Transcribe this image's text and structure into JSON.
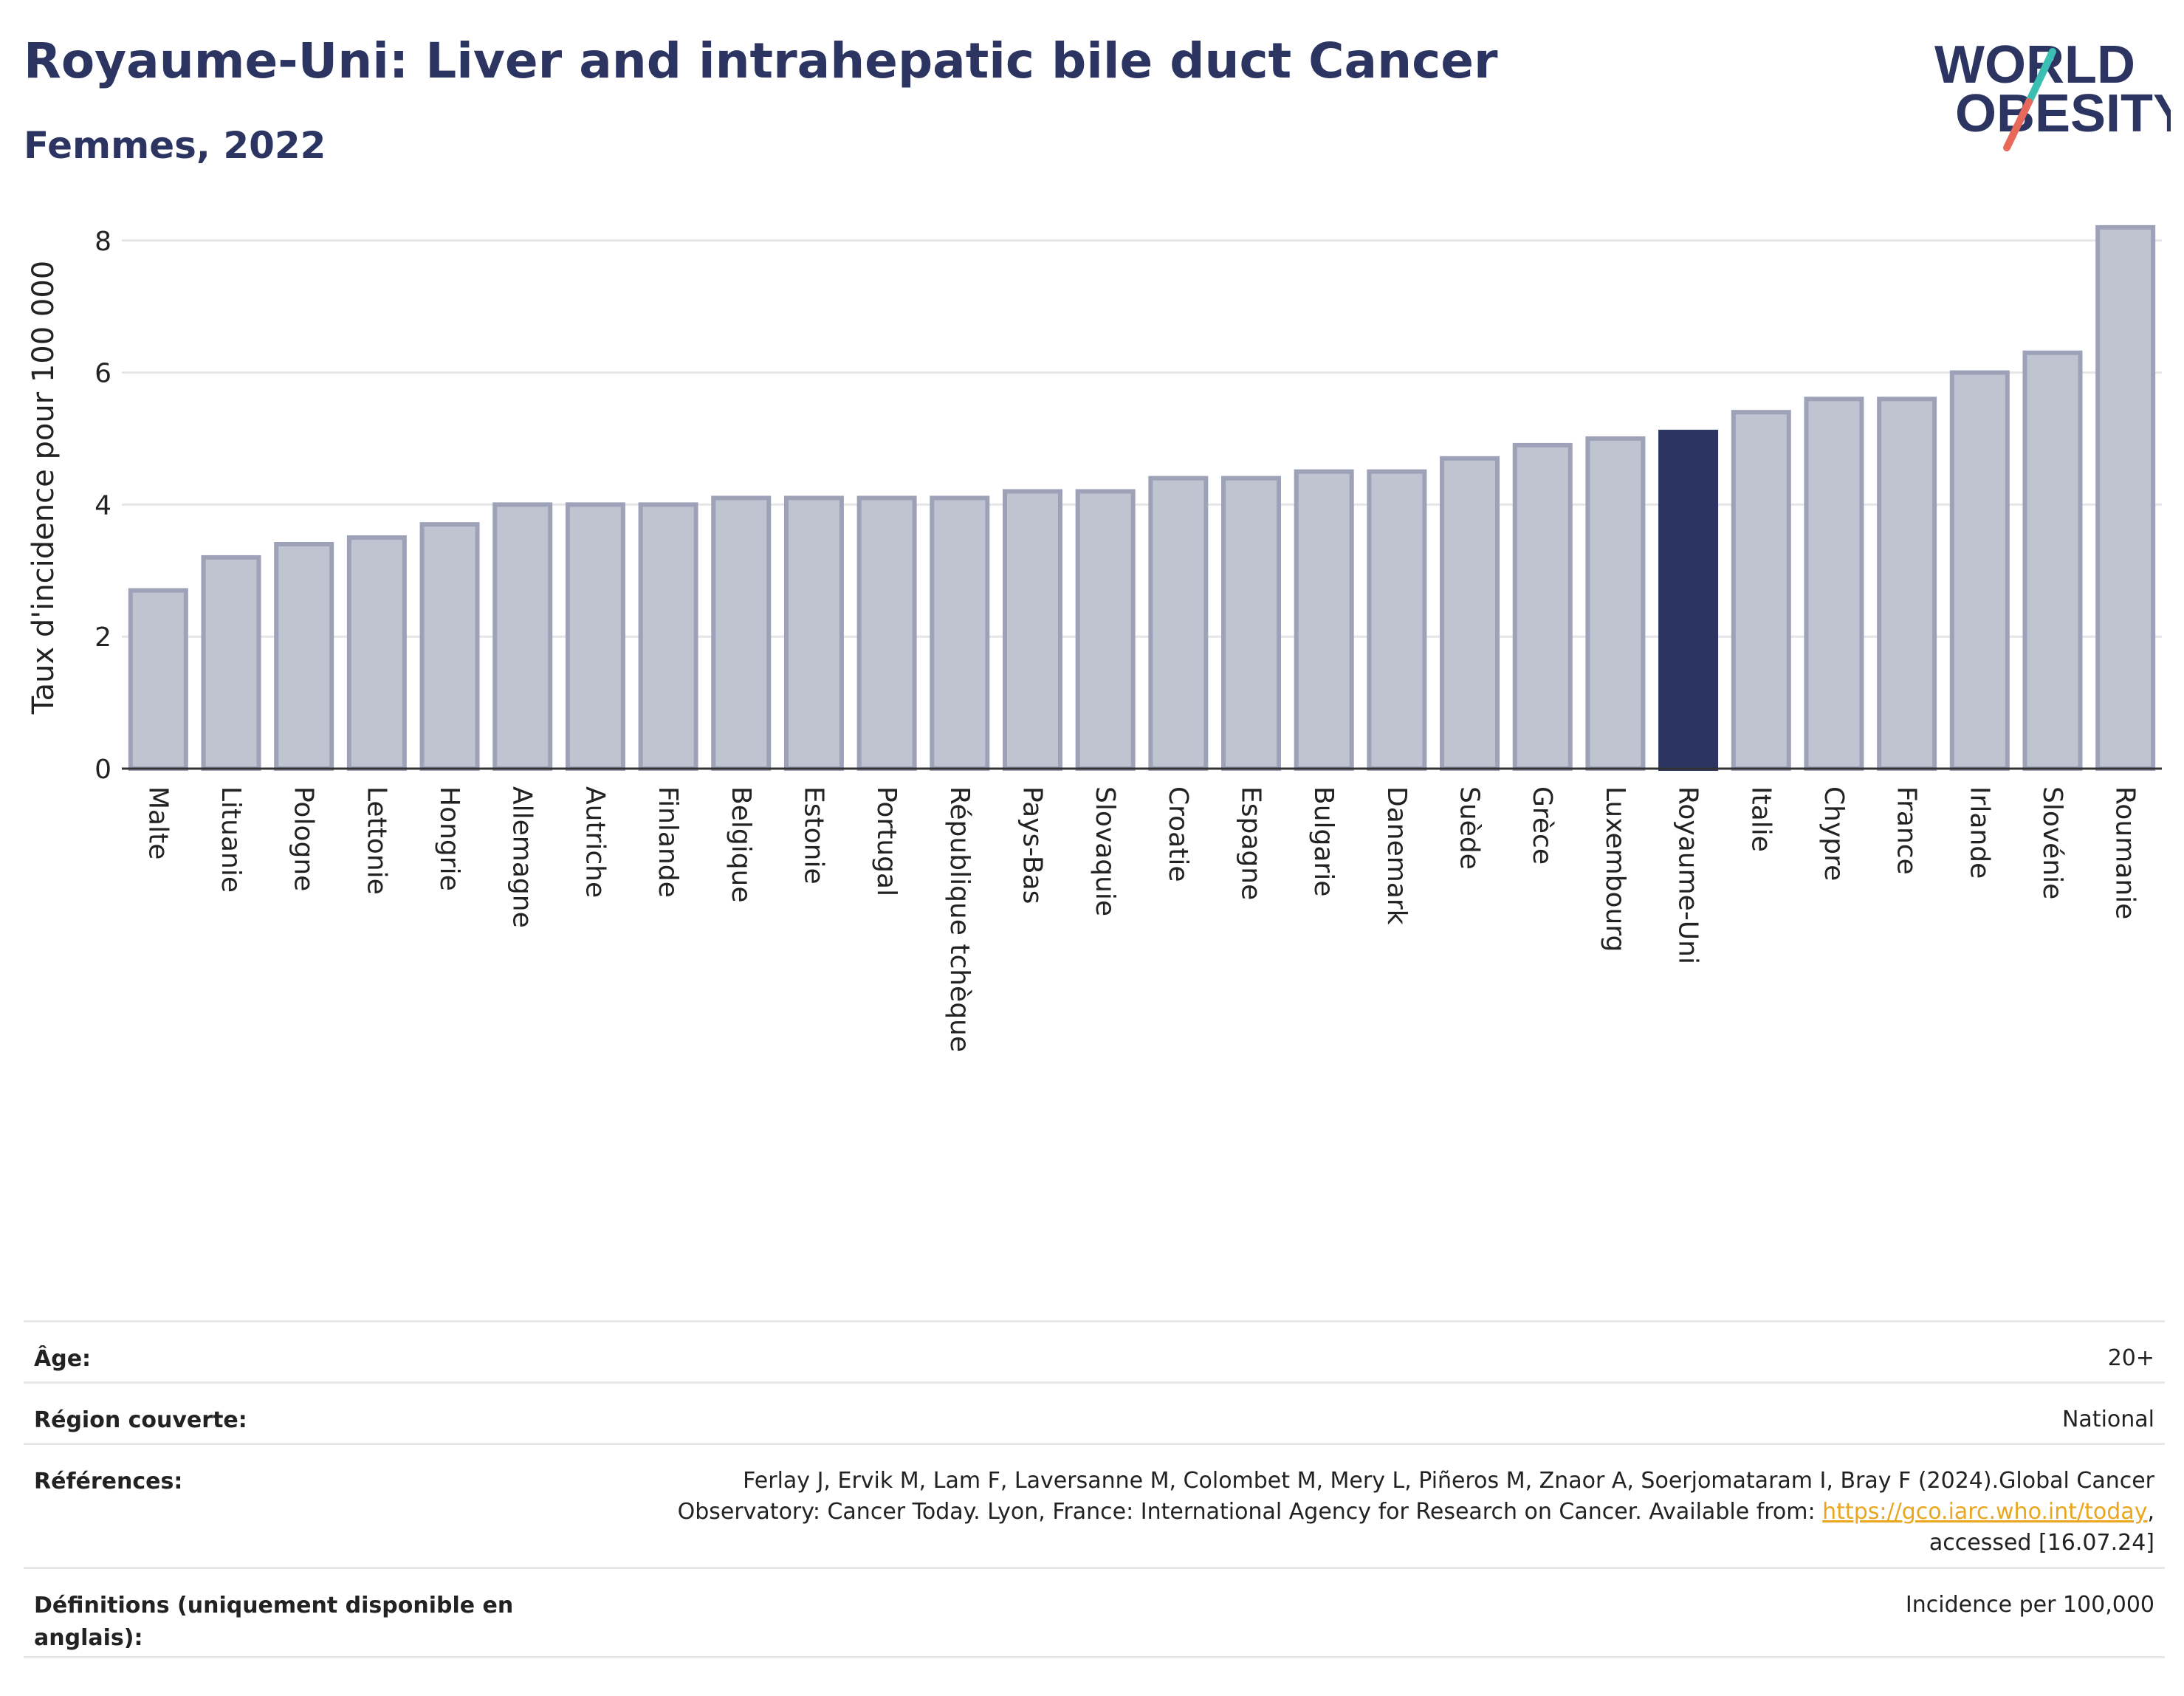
{
  "header": {
    "title": "Royaume-Uni: Liver and intrahepatic bile duct Cancer",
    "subtitle": "Femmes, 2022"
  },
  "logo": {
    "line1": "WORLD",
    "line2": "OBESITY",
    "colors": {
      "text": "#2c3561",
      "slash_top": "#3bbfb3",
      "slash_bottom": "#e8695a"
    }
  },
  "chart_data": {
    "type": "bar",
    "ylabel": "Taux d'incidence pour 100 000",
    "ylim": [
      0,
      8.4
    ],
    "yticks": [
      0,
      2,
      4,
      6,
      8
    ],
    "grid": true,
    "categories": [
      "Malte",
      "Lituanie",
      "Pologne",
      "Lettonie",
      "Hongrie",
      "Allemagne",
      "Autriche",
      "Finlande",
      "Belgique",
      "Estonie",
      "Portugal",
      "République tchèque",
      "Pays-Bas",
      "Slovaquie",
      "Croatie",
      "Espagne",
      "Bulgarie",
      "Danemark",
      "Suède",
      "Grèce",
      "Luxembourg",
      "Royaume-Uni",
      "Italie",
      "Chypre",
      "France",
      "Irlande",
      "Slovénie",
      "Roumanie"
    ],
    "values": [
      2.7,
      3.2,
      3.4,
      3.5,
      3.7,
      4.0,
      4.0,
      4.0,
      4.1,
      4.1,
      4.1,
      4.1,
      4.2,
      4.2,
      4.4,
      4.4,
      4.5,
      4.5,
      4.7,
      4.9,
      5.0,
      5.1,
      5.4,
      5.6,
      5.6,
      6.0,
      6.3,
      8.2
    ],
    "highlight": "Royaume-Uni",
    "colors": {
      "bar": "#c0c3d0",
      "bar_border": "#9da2b8",
      "highlight": "#2c3561",
      "grid": "#e6e6ea",
      "axis": "#333333"
    }
  },
  "info": {
    "rows": [
      {
        "label": "Âge:",
        "value": "20+"
      },
      {
        "label": "Région couverte:",
        "value": "National"
      },
      {
        "label": "Références:",
        "value_pre": "Ferlay J, Ervik M, Lam F, Laversanne M, Colombet M, Mery L, Piñeros M, Znaor A, Soerjomataram I, Bray F (2024).Global Cancer Observatory: Cancer Today. Lyon, France: International Agency for Research on Cancer. Available from: ",
        "link": "https://gco.iarc.who.int/today",
        "value_post": ", accessed [16.07.24]"
      },
      {
        "label": "Définitions (uniquement disponible en anglais):",
        "value": "Incidence per 100,000"
      }
    ]
  }
}
